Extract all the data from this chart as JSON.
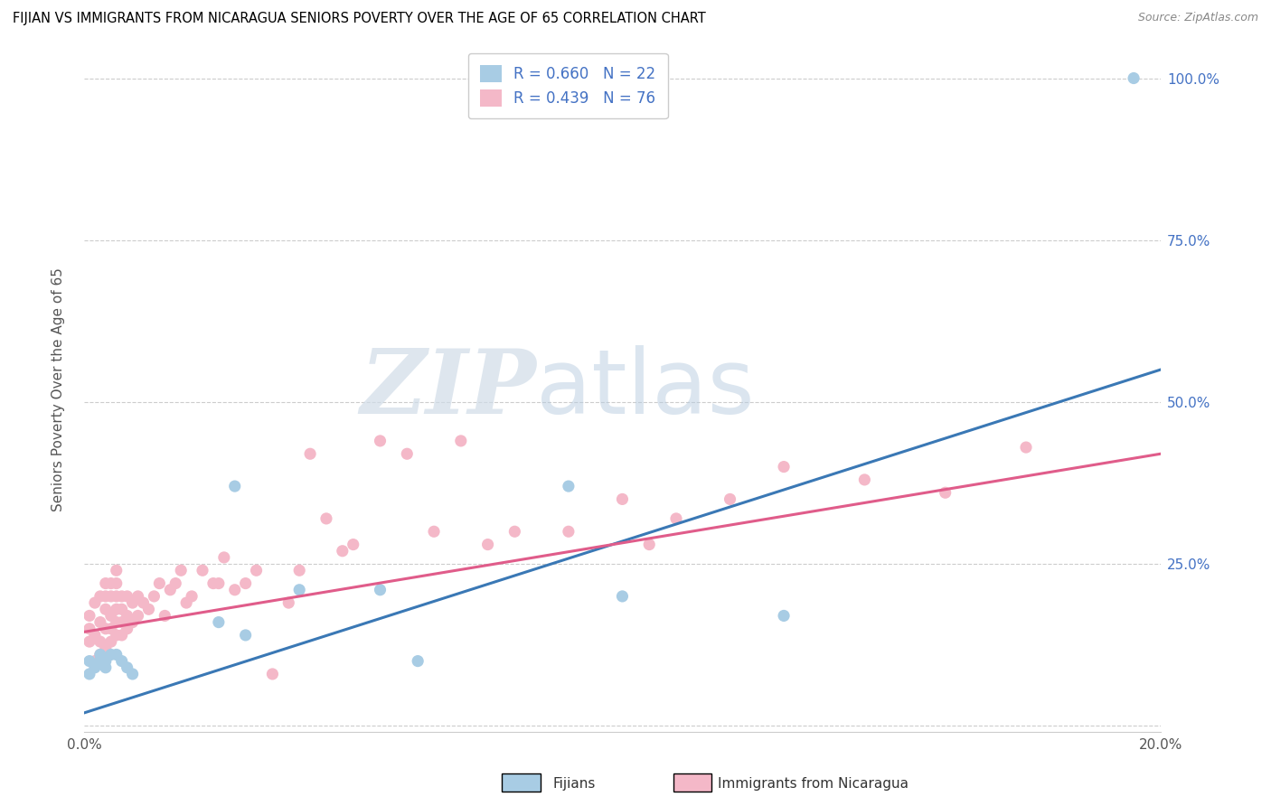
{
  "title": "FIJIAN VS IMMIGRANTS FROM NICARAGUA SENIORS POVERTY OVER THE AGE OF 65 CORRELATION CHART",
  "source": "Source: ZipAtlas.com",
  "ylabel": "Seniors Poverty Over the Age of 65",
  "xlim": [
    0.0,
    0.2
  ],
  "ylim": [
    -0.01,
    1.05
  ],
  "fijian_color": "#a8cce4",
  "nicaragua_color": "#f4b8c8",
  "fijian_line_color": "#3a78b5",
  "nicaragua_line_color": "#e05c8a",
  "R_fijian": 0.66,
  "N_fijian": 22,
  "R_nicaragua": 0.439,
  "N_nicaragua": 76,
  "legend_label_fijian": "Fijians",
  "legend_label_nicaragua": "Immigrants from Nicaragua",
  "watermark_zip": "ZIP",
  "watermark_atlas": "atlas",
  "fijian_x": [
    0.001,
    0.001,
    0.002,
    0.003,
    0.003,
    0.004,
    0.004,
    0.005,
    0.006,
    0.007,
    0.008,
    0.009,
    0.025,
    0.028,
    0.03,
    0.04,
    0.055,
    0.062,
    0.09,
    0.1,
    0.13,
    0.195
  ],
  "fijian_y": [
    0.1,
    0.08,
    0.09,
    0.1,
    0.11,
    0.09,
    0.1,
    0.11,
    0.11,
    0.1,
    0.09,
    0.08,
    0.16,
    0.37,
    0.14,
    0.21,
    0.21,
    0.1,
    0.37,
    0.2,
    0.17,
    1.0
  ],
  "nicaragua_x": [
    0.001,
    0.001,
    0.001,
    0.002,
    0.002,
    0.002,
    0.003,
    0.003,
    0.003,
    0.003,
    0.004,
    0.004,
    0.004,
    0.004,
    0.004,
    0.005,
    0.005,
    0.005,
    0.005,
    0.005,
    0.006,
    0.006,
    0.006,
    0.006,
    0.006,
    0.006,
    0.007,
    0.007,
    0.007,
    0.007,
    0.008,
    0.008,
    0.008,
    0.009,
    0.009,
    0.01,
    0.01,
    0.011,
    0.012,
    0.013,
    0.014,
    0.015,
    0.016,
    0.017,
    0.018,
    0.019,
    0.02,
    0.022,
    0.024,
    0.025,
    0.026,
    0.028,
    0.03,
    0.032,
    0.035,
    0.038,
    0.04,
    0.042,
    0.045,
    0.048,
    0.05,
    0.055,
    0.06,
    0.065,
    0.07,
    0.075,
    0.08,
    0.09,
    0.1,
    0.105,
    0.11,
    0.12,
    0.13,
    0.145,
    0.16,
    0.175
  ],
  "nicaragua_y": [
    0.13,
    0.15,
    0.17,
    0.1,
    0.14,
    0.19,
    0.11,
    0.13,
    0.16,
    0.2,
    0.12,
    0.15,
    0.18,
    0.2,
    0.22,
    0.13,
    0.15,
    0.17,
    0.2,
    0.22,
    0.14,
    0.16,
    0.18,
    0.2,
    0.22,
    0.24,
    0.14,
    0.16,
    0.18,
    0.2,
    0.15,
    0.17,
    0.2,
    0.16,
    0.19,
    0.17,
    0.2,
    0.19,
    0.18,
    0.2,
    0.22,
    0.17,
    0.21,
    0.22,
    0.24,
    0.19,
    0.2,
    0.24,
    0.22,
    0.22,
    0.26,
    0.21,
    0.22,
    0.24,
    0.08,
    0.19,
    0.24,
    0.42,
    0.32,
    0.27,
    0.28,
    0.44,
    0.42,
    0.3,
    0.44,
    0.28,
    0.3,
    0.3,
    0.35,
    0.28,
    0.32,
    0.35,
    0.4,
    0.38,
    0.36,
    0.43
  ],
  "fijian_line_x": [
    0.0,
    0.2
  ],
  "fijian_line_y": [
    0.02,
    0.55
  ],
  "nicaragua_line_x": [
    0.0,
    0.2
  ],
  "nicaragua_line_y": [
    0.145,
    0.42
  ]
}
